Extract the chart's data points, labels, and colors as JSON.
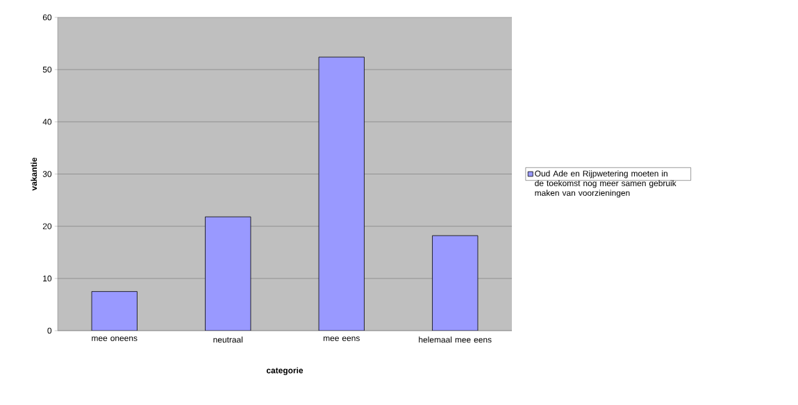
{
  "chart_data": {
    "type": "bar",
    "xlabel": "categorie",
    "ylabel": "vakantie",
    "categories": [
      "mee oneens",
      "neutraal",
      "mee eens",
      "helemaal mee eens"
    ],
    "series": [
      {
        "name": "Oud Ade en Rijpwetering moeten in de toekomst nog meer samen gebruik maken van voorzieningen",
        "color": "#9999ff",
        "values": [
          7.5,
          21.8,
          52.4,
          18.2
        ]
      }
    ],
    "ylim": [
      0,
      60
    ],
    "yticks": [
      0,
      10,
      20,
      30,
      40,
      50,
      60
    ],
    "grid": "y",
    "legend": "right"
  }
}
